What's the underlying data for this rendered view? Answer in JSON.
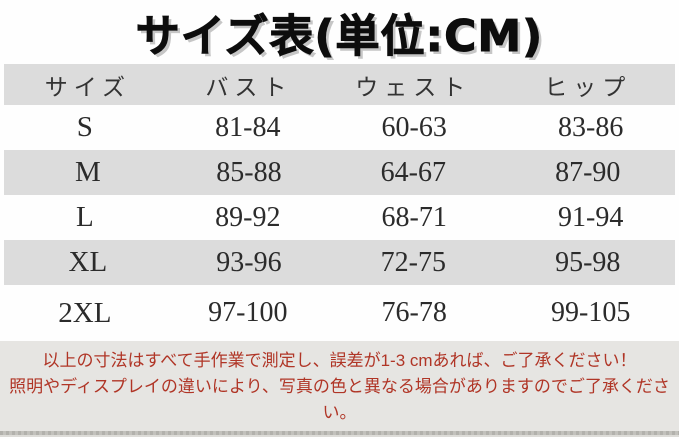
{
  "title": "サイズ表(単位:CM)",
  "table": {
    "headers": [
      "サイズ",
      "バスト",
      "ウェスト",
      "ヒップ"
    ],
    "rows": [
      [
        "S",
        "81-84",
        "60-63",
        "83-86"
      ],
      [
        "M",
        "85-88",
        "64-67",
        "87-90"
      ],
      [
        "L",
        "89-92",
        "68-71",
        "91-94"
      ],
      [
        "XL",
        "93-96",
        "72-75",
        "95-98"
      ],
      [
        "2XL",
        "97-100",
        "76-78",
        "99-105"
      ]
    ]
  },
  "notes": {
    "line1": "以上の寸法はすべて手作業で測定し、誤差が1-3 cmあれば、ご了承ください！",
    "line2": "照明やディスプレイの違いにより、写真の色と異なる場合がありますのでご了承ください。"
  },
  "colors": {
    "stripe_gray": "#dcdcdc",
    "footer_gray": "#e6e5e2",
    "note_red": "#b03526",
    "title_black": "#0d0d0d",
    "title_shadow": "#c6c6c6"
  }
}
